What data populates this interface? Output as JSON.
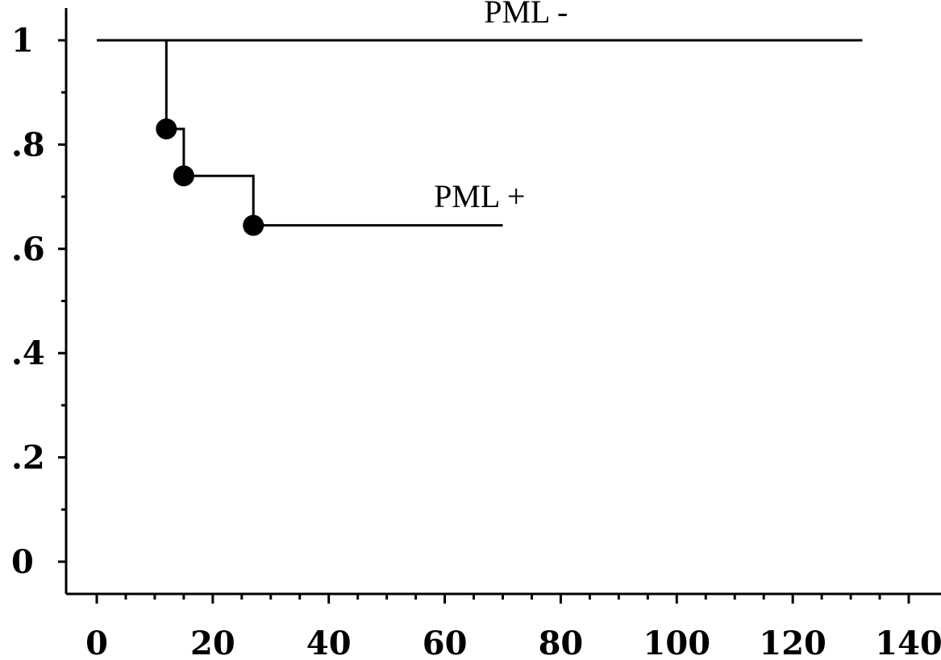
{
  "chart_data": {
    "type": "line",
    "title": "",
    "xlabel": "",
    "ylabel": "",
    "xlim": [
      0,
      140
    ],
    "ylim": [
      0,
      1
    ],
    "x_ticks": [
      0,
      20,
      40,
      60,
      80,
      100,
      120,
      140
    ],
    "x_tick_labels": [
      "0",
      "20",
      "40",
      "60",
      "80",
      "100",
      "120",
      "140"
    ],
    "y_ticks": [
      0,
      0.2,
      0.4,
      0.6,
      0.8,
      1
    ],
    "y_tick_labels": [
      "0",
      ".2",
      ".4",
      ".6",
      ".8",
      "1"
    ],
    "grid": false,
    "series": [
      {
        "name": "PML -",
        "step": true,
        "x": [
          0,
          132
        ],
        "y": [
          1,
          1
        ],
        "events": []
      },
      {
        "name": "PML +",
        "step": true,
        "x": [
          12,
          12,
          15,
          15,
          27,
          27,
          70
        ],
        "y": [
          1,
          0.83,
          0.83,
          0.74,
          0.74,
          0.645,
          0.645
        ],
        "events": [
          {
            "x": 12,
            "y": 0.83
          },
          {
            "x": 15,
            "y": 0.74
          },
          {
            "x": 27,
            "y": 0.645
          }
        ]
      }
    ]
  }
}
